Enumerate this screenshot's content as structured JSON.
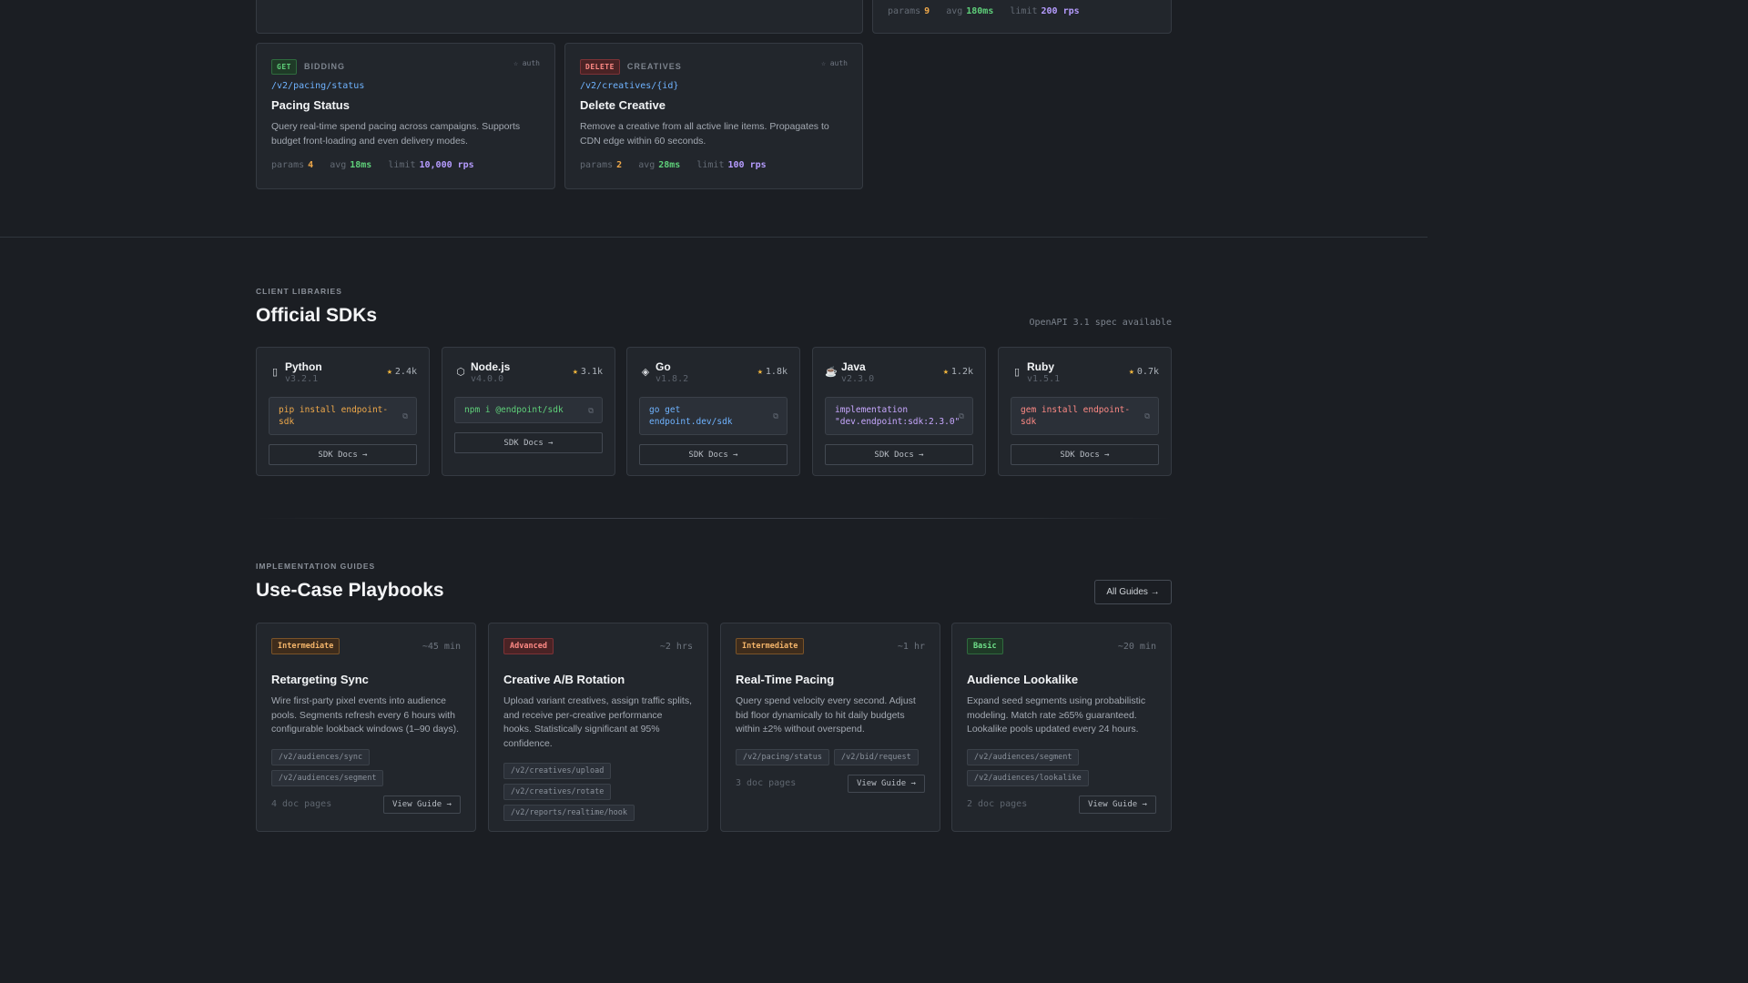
{
  "top_partial": {
    "right_card_stats": {
      "params_label": "params",
      "params": "9",
      "avg_label": "avg",
      "avg": "180ms",
      "limit_label": "limit",
      "limit": "200 rps"
    }
  },
  "endpoints": [
    {
      "method": "GET",
      "tag": "BIDDING",
      "auth": "☆ auth",
      "path": "/v2/pacing/status",
      "title": "Pacing Status",
      "description": "Query real-time spend pacing across campaigns. Supports budget front-loading and even delivery modes.",
      "params": "4",
      "avg": "18ms",
      "limit": "10,000 rps"
    },
    {
      "method": "DELETE",
      "tag": "CREATIVES",
      "auth": "☆ auth",
      "path": "/v2/creatives/{id}",
      "title": "Delete Creative",
      "description": "Remove a creative from all active line items. Propagates to CDN edge within 60 seconds.",
      "params": "2",
      "avg": "28ms",
      "limit": "100 rps"
    }
  ],
  "stat_labels": {
    "params": "params",
    "avg": "avg",
    "limit": "limit"
  },
  "sdk_section": {
    "eyebrow": "CLIENT LIBRARIES",
    "title": "Official SDKs",
    "spec_note": "OpenAPI 3.1 spec available",
    "doc_label": "SDK Docs →",
    "copy_icon": "⧉",
    "star_icon": "★",
    "sdks": [
      {
        "name": "Python",
        "version": "v3.2.1",
        "stars": "2.4k",
        "install": "pip install endpoint-sdk",
        "icon": "python-icon",
        "glyph": "▯",
        "color": "#f0a94a"
      },
      {
        "name": "Node.js",
        "version": "v4.0.0",
        "stars": "3.1k",
        "install": "npm i @endpoint/sdk",
        "icon": "nodejs-icon",
        "glyph": "⬡",
        "color": "#5fd07a"
      },
      {
        "name": "Go",
        "version": "v1.8.2",
        "stars": "1.8k",
        "install": "go get endpoint.dev/sdk",
        "icon": "go-icon",
        "glyph": "◈",
        "color": "#6fb3ff"
      },
      {
        "name": "Java",
        "version": "v2.3.0",
        "stars": "1.2k",
        "install": "implementation \"dev.endpoint:sdk:2.3.0\"",
        "icon": "java-icon",
        "glyph": "☕",
        "color": "#c8a8ff"
      },
      {
        "name": "Ruby",
        "version": "v1.5.1",
        "stars": "0.7k",
        "install": "gem install endpoint-sdk",
        "icon": "ruby-icon",
        "glyph": "▯",
        "color": "#ff8a85"
      }
    ]
  },
  "guides_section": {
    "eyebrow": "IMPLEMENTATION GUIDES",
    "title": "Use-Case Playbooks",
    "all_guides": "All Guides →",
    "view_label": "View Guide →",
    "playbooks": [
      {
        "level": "Intermediate",
        "level_class": "intermediate",
        "duration": "~45 min",
        "title": "Retargeting Sync",
        "description": "Wire first-party pixel events into audience pools. Segments refresh every 6 hours with configurable lookback windows (1–90 days).",
        "endpoints": [
          "/v2/audiences/sync",
          "/v2/audiences/segment"
        ],
        "pages": "4 doc pages"
      },
      {
        "level": "Advanced",
        "level_class": "advanced",
        "duration": "~2 hrs",
        "title": "Creative A/B Rotation",
        "description": "Upload variant creatives, assign traffic splits, and receive per-creative performance hooks. Statistically significant at 95% confidence.",
        "endpoints": [
          "/v2/creatives/upload",
          "/v2/creatives/rotate",
          "/v2/reports/realtime/hook"
        ],
        "pages": ""
      },
      {
        "level": "Intermediate",
        "level_class": "intermediate",
        "duration": "~1 hr",
        "title": "Real-Time Pacing",
        "description": "Query spend velocity every second. Adjust bid floor dynamically to hit daily budgets within ±2% without overspend.",
        "endpoints": [
          "/v2/pacing/status",
          "/v2/bid/request"
        ],
        "pages": "3 doc pages"
      },
      {
        "level": "Basic",
        "level_class": "basic",
        "duration": "~20 min",
        "title": "Audience Lookalike",
        "description": "Expand seed segments using probabilistic modeling. Match rate ≥65% guaranteed. Lookalike pools updated every 24 hours.",
        "endpoints": [
          "/v2/audiences/segment",
          "/v2/audiences/lookalike"
        ],
        "pages": "2 doc pages"
      }
    ]
  }
}
